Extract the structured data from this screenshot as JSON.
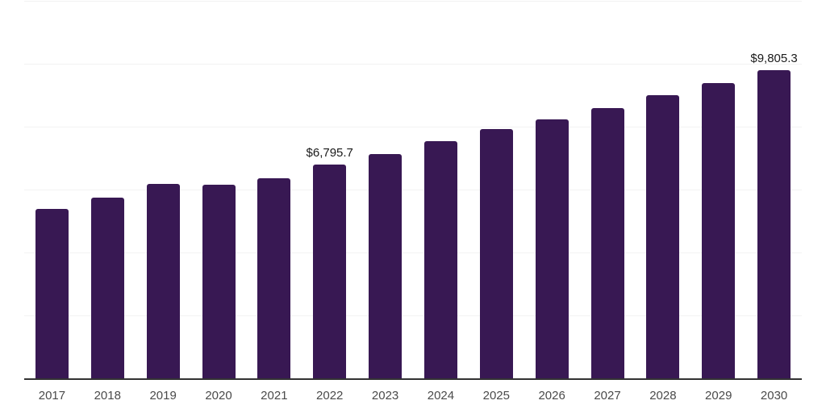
{
  "chart_data": {
    "type": "bar",
    "title": "",
    "xlabel": "",
    "ylabel": "",
    "categories": [
      "2017",
      "2018",
      "2019",
      "2020",
      "2021",
      "2022",
      "2023",
      "2024",
      "2025",
      "2026",
      "2027",
      "2028",
      "2029",
      "2030"
    ],
    "values": [
      5380,
      5740,
      6170,
      6150,
      6355,
      6795.7,
      7120,
      7530,
      7915,
      8225,
      8585,
      8995,
      9380,
      9805.3
    ],
    "annotations": [
      {
        "category": "2022",
        "category_index": 5,
        "text": "$6,795.7"
      },
      {
        "category": "2030",
        "category_index": 13,
        "text": "$9,805.3"
      }
    ],
    "ylim": [
      0,
      12000
    ],
    "gridline_step": 2000,
    "grid": "horizontal",
    "legend": "none",
    "y_axis_ticks_visible": false,
    "colors": {
      "bar": "#381853",
      "gridline": "#f2f2f2",
      "axis_line": "#333333",
      "tick_label": "#4a4a4a",
      "annotation": "#1a1a1a",
      "background": "#ffffff"
    }
  }
}
